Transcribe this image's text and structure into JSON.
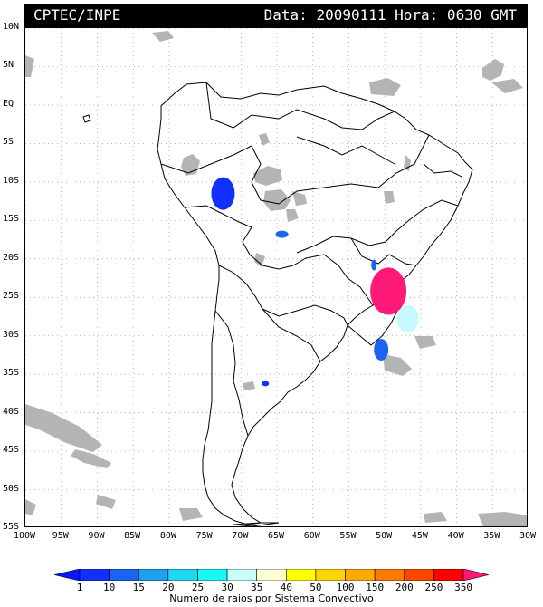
{
  "header": {
    "agency": "CPTEC/INPE",
    "datetime": "Data: 20090111 Hora: 0630 GMT"
  },
  "map": {
    "lat_labels": [
      "10N",
      "5N",
      "EQ",
      "5S",
      "10S",
      "15S",
      "20S",
      "25S",
      "30S",
      "35S",
      "40S",
      "45S",
      "50S",
      "55S"
    ],
    "lon_labels": [
      "100W",
      "95W",
      "90W",
      "85W",
      "80W",
      "75W",
      "70W",
      "65W",
      "60W",
      "55W",
      "50W",
      "45W",
      "40W",
      "35W",
      "30W"
    ],
    "lat_range": [
      10,
      -55
    ],
    "lon_range": [
      -100,
      -30
    ],
    "grid": "dotted",
    "cloud_color": "#b4b4b4",
    "storms": [
      {
        "name": "peru-bolivia",
        "lon": -72.5,
        "lat": -11.5,
        "class": 10,
        "color": "#1030ff"
      },
      {
        "name": "bolivia-east",
        "lon": -64.3,
        "lat": -16.8,
        "class": 15,
        "color": "#1a64f0"
      },
      {
        "name": "parana-small",
        "lon": -51.5,
        "lat": -20.8,
        "class": 15,
        "color": "#1a64f0"
      },
      {
        "name": "sao-paulo-complex",
        "lon": -49.5,
        "lat": -24.2,
        "class": 350,
        "color": "#ff1a78"
      },
      {
        "name": "atlantic-cyan",
        "lon": -46.8,
        "lat": -27.8,
        "class": 30,
        "color": "#c8f8ff"
      },
      {
        "name": "rio-grande",
        "lon": -50.5,
        "lat": -31.8,
        "class": 15,
        "color": "#1a64f0"
      },
      {
        "name": "argentina",
        "lon": -66.6,
        "lat": -36.2,
        "class": 10,
        "color": "#1030ff"
      }
    ]
  },
  "legend": {
    "labels": [
      "1",
      "10",
      "15",
      "20",
      "25",
      "30",
      "35",
      "40",
      "50",
      "100",
      "150",
      "200",
      "250",
      "350"
    ],
    "colors": [
      "#0c14ff",
      "#1030ff",
      "#1a64f0",
      "#1ea0f0",
      "#20d8f4",
      "#18f8f8",
      "#c8fffc",
      "#ffffd2",
      "#ffff00",
      "#ffd400",
      "#ffaa00",
      "#ff7800",
      "#ff4600",
      "#ff0000",
      "#ff1a78"
    ],
    "caption": "Numero de raios por Sistema Convectivo"
  }
}
